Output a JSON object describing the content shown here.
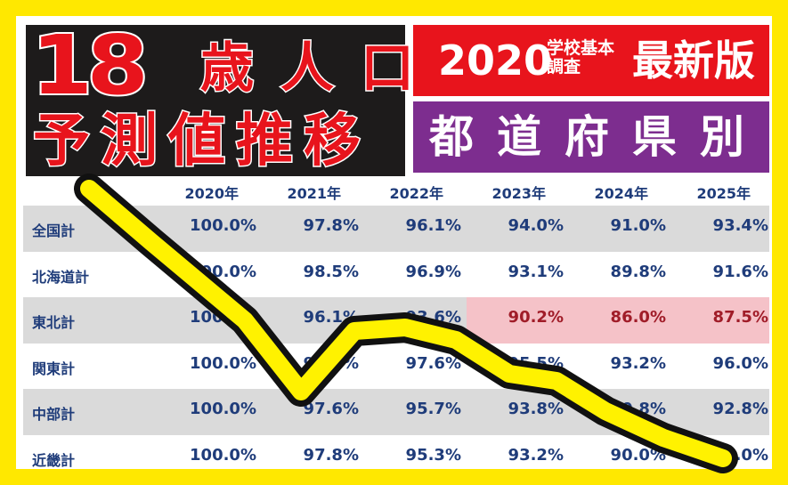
{
  "header": {
    "big_number": "18",
    "title_line1": "歳人口",
    "title_line2": "予測値推移",
    "year": "2020",
    "year_small_line1": "学校基本",
    "year_small_line2": "調査",
    "latest": "最新版",
    "by_prefecture": "都道府県別"
  },
  "colors": {
    "border": "#ffe800",
    "red": "#e8141c",
    "purple": "#7d2d8f",
    "navy": "#1f3c7a",
    "highlight": "#f5c2c8"
  },
  "chart_data": {
    "type": "table",
    "columns": [
      "2020年",
      "2021年",
      "2022年",
      "2023年",
      "2024年",
      "2025年"
    ],
    "rows": [
      {
        "label": "全国計",
        "values": [
          "100.0%",
          "97.8%",
          "96.1%",
          "94.0%",
          "91.0%",
          "93.4%"
        ]
      },
      {
        "label": "北海道計",
        "values": [
          "100.0%",
          "98.5%",
          "96.9%",
          "93.1%",
          "89.8%",
          "91.6%"
        ]
      },
      {
        "label": "東北計",
        "values": [
          "100.0%",
          "96.1%",
          "93.6%",
          "90.2%",
          "86.0%",
          "87.5%"
        ],
        "highlight_from_col": 3
      },
      {
        "label": "関東計",
        "values": [
          "100.0%",
          "98.8%",
          "97.6%",
          "95.5%",
          "93.2%",
          "96.0%"
        ]
      },
      {
        "label": "中部計",
        "values": [
          "100.0%",
          "97.6%",
          "95.7%",
          "93.8%",
          "90.8%",
          "92.8%"
        ]
      },
      {
        "label": "近畿計",
        "values": [
          "100.0%",
          "97.8%",
          "95.3%",
          "93.2%",
          "90.0%",
          "92.0%"
        ]
      }
    ]
  }
}
